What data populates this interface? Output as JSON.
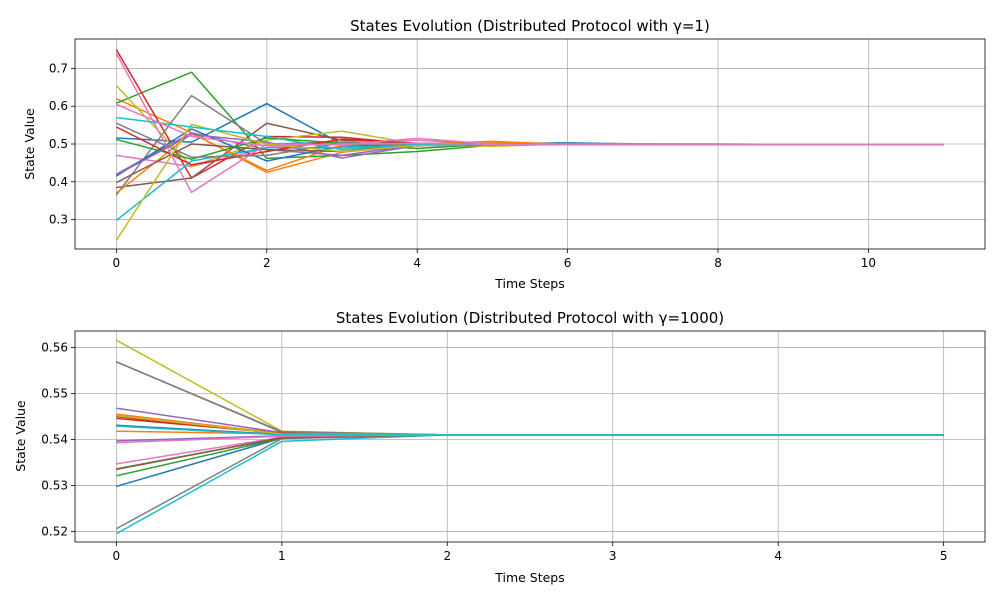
{
  "chart_data": [
    {
      "type": "line",
      "title": "States Evolution (Distributed Protocol with γ=1)",
      "xlabel": "Time Steps",
      "ylabel": "State Value",
      "xlim": [
        -0.55,
        11.55
      ],
      "ylim": [
        0.222,
        0.778
      ],
      "xticks": [
        0,
        2,
        4,
        6,
        8,
        10
      ],
      "yticks": [
        0.3,
        0.4,
        0.5,
        0.6,
        0.7
      ],
      "ytick_labels": [
        "0.3",
        "0.4",
        "0.5",
        "0.6",
        "0.7"
      ],
      "grid": true,
      "x": [
        0,
        1,
        2,
        3,
        4,
        5,
        6,
        7,
        8,
        9,
        10,
        11
      ],
      "series": [
        {
          "color": "#1f77b4",
          "values": [
            0.516,
            0.505,
            0.607,
            0.5,
            0.498,
            0.501,
            0.503,
            0.5,
            0.5,
            0.499,
            0.499,
            0.499
          ]
        },
        {
          "color": "#ff7f0e",
          "values": [
            0.62,
            0.53,
            0.425,
            0.478,
            0.497,
            0.503,
            0.5,
            0.499,
            0.499,
            0.499,
            0.499,
            0.499
          ]
        },
        {
          "color": "#2ca02c",
          "values": [
            0.608,
            0.69,
            0.462,
            0.47,
            0.48,
            0.497,
            0.501,
            0.5,
            0.499,
            0.499,
            0.499,
            0.499
          ]
        },
        {
          "color": "#d62728",
          "values": [
            0.75,
            0.41,
            0.52,
            0.518,
            0.5,
            0.5,
            0.499,
            0.499,
            0.499,
            0.499,
            0.499,
            0.499
          ]
        },
        {
          "color": "#9467bd",
          "values": [
            0.42,
            0.53,
            0.485,
            0.47,
            0.498,
            0.5,
            0.499,
            0.499,
            0.499,
            0.499,
            0.499,
            0.499
          ]
        },
        {
          "color": "#8c564b",
          "values": [
            0.385,
            0.41,
            0.555,
            0.51,
            0.5,
            0.498,
            0.499,
            0.499,
            0.499,
            0.499,
            0.499,
            0.499
          ]
        },
        {
          "color": "#e377c2",
          "values": [
            0.47,
            0.44,
            0.49,
            0.505,
            0.51,
            0.5,
            0.499,
            0.499,
            0.499,
            0.499,
            0.499,
            0.499
          ]
        },
        {
          "color": "#7f7f7f",
          "values": [
            0.365,
            0.628,
            0.5,
            0.505,
            0.495,
            0.499,
            0.499,
            0.499,
            0.499,
            0.499,
            0.499,
            0.499
          ]
        },
        {
          "color": "#bcbd22",
          "values": [
            0.655,
            0.44,
            0.51,
            0.534,
            0.5,
            0.494,
            0.5,
            0.5,
            0.499,
            0.499,
            0.499,
            0.499
          ]
        },
        {
          "color": "#17becf",
          "values": [
            0.298,
            0.455,
            0.49,
            0.49,
            0.5,
            0.5,
            0.499,
            0.499,
            0.499,
            0.499,
            0.499,
            0.499
          ]
        },
        {
          "color": "#1f77b4",
          "values": [
            0.415,
            0.54,
            0.455,
            0.495,
            0.498,
            0.5,
            0.499,
            0.499,
            0.499,
            0.499,
            0.499,
            0.499
          ]
        },
        {
          "color": "#ff7f0e",
          "values": [
            0.37,
            0.528,
            0.43,
            0.497,
            0.5,
            0.507,
            0.499,
            0.499,
            0.499,
            0.499,
            0.499,
            0.499
          ]
        },
        {
          "color": "#2ca02c",
          "values": [
            0.512,
            0.46,
            0.516,
            0.502,
            0.488,
            0.5,
            0.499,
            0.499,
            0.499,
            0.499,
            0.499,
            0.499
          ]
        },
        {
          "color": "#d62728",
          "values": [
            0.545,
            0.445,
            0.48,
            0.513,
            0.502,
            0.499,
            0.499,
            0.499,
            0.499,
            0.499,
            0.499,
            0.499
          ]
        },
        {
          "color": "#9467bd",
          "values": [
            0.418,
            0.525,
            0.505,
            0.463,
            0.496,
            0.5,
            0.499,
            0.499,
            0.499,
            0.499,
            0.499,
            0.499
          ]
        },
        {
          "color": "#8c564b",
          "values": [
            0.398,
            0.5,
            0.485,
            0.48,
            0.502,
            0.5,
            0.499,
            0.499,
            0.499,
            0.499,
            0.499,
            0.499
          ]
        },
        {
          "color": "#e377c2",
          "values": [
            0.74,
            0.372,
            0.5,
            0.498,
            0.515,
            0.5,
            0.499,
            0.499,
            0.499,
            0.499,
            0.499,
            0.499
          ]
        },
        {
          "color": "#7f7f7f",
          "values": [
            0.555,
            0.465,
            0.47,
            0.503,
            0.495,
            0.499,
            0.499,
            0.499,
            0.499,
            0.499,
            0.499,
            0.499
          ]
        },
        {
          "color": "#bcbd22",
          "values": [
            0.245,
            0.552,
            0.5,
            0.48,
            0.496,
            0.5,
            0.499,
            0.499,
            0.499,
            0.499,
            0.499,
            0.499
          ]
        },
        {
          "color": "#17becf",
          "values": [
            0.57,
            0.545,
            0.52,
            0.485,
            0.5,
            0.499,
            0.499,
            0.499,
            0.499,
            0.499,
            0.499,
            0.499
          ]
        },
        {
          "color": "#e377c2",
          "values": [
            0.605,
            0.52,
            0.495,
            0.5,
            0.502,
            0.499,
            0.499,
            0.499,
            0.499,
            0.499,
            0.499,
            0.499
          ]
        }
      ]
    },
    {
      "type": "line",
      "title": "States Evolution (Distributed Protocol with γ=1000)",
      "xlabel": "Time Steps",
      "ylabel": "State Value",
      "xlim": [
        -0.25,
        5.25
      ],
      "ylim": [
        0.5177,
        0.5636
      ],
      "xticks": [
        0,
        1,
        2,
        3,
        4,
        5
      ],
      "yticks": [
        0.52,
        0.53,
        0.54,
        0.55,
        0.56
      ],
      "ytick_labels": [
        "0.52",
        "0.53",
        "0.54",
        "0.55",
        "0.56"
      ],
      "grid": true,
      "x": [
        0,
        1,
        2,
        3,
        4,
        5
      ],
      "series": [
        {
          "color": "#1f77b4",
          "values": [
            0.5298,
            0.5403,
            0.541,
            0.541,
            0.541,
            0.541
          ]
        },
        {
          "color": "#ff7f0e",
          "values": [
            0.5418,
            0.5412,
            0.541,
            0.541,
            0.541,
            0.541
          ]
        },
        {
          "color": "#2ca02c",
          "values": [
            0.5321,
            0.5403,
            0.541,
            0.541,
            0.541,
            0.541
          ]
        },
        {
          "color": "#d62728",
          "values": [
            0.545,
            0.5414,
            0.541,
            0.541,
            0.541,
            0.541
          ]
        },
        {
          "color": "#9467bd",
          "values": [
            0.5468,
            0.5415,
            0.541,
            0.541,
            0.541,
            0.541
          ]
        },
        {
          "color": "#8c564b",
          "values": [
            0.5569,
            0.5416,
            0.541,
            0.541,
            0.541,
            0.541
          ]
        },
        {
          "color": "#e377c2",
          "values": [
            0.5347,
            0.5405,
            0.541,
            0.541,
            0.541,
            0.541
          ]
        },
        {
          "color": "#7f7f7f",
          "values": [
            0.5206,
            0.5402,
            0.541,
            0.541,
            0.541,
            0.541
          ]
        },
        {
          "color": "#bcbd22",
          "values": [
            0.5616,
            0.5418,
            0.541,
            0.541,
            0.541,
            0.541
          ]
        },
        {
          "color": "#17becf",
          "values": [
            0.5195,
            0.5396,
            0.541,
            0.541,
            0.541,
            0.541
          ]
        },
        {
          "color": "#1f77b4",
          "values": [
            0.5431,
            0.5411,
            0.541,
            0.541,
            0.541,
            0.541
          ]
        },
        {
          "color": "#ff7f0e",
          "values": [
            0.5455,
            0.5413,
            0.541,
            0.541,
            0.541,
            0.541
          ]
        },
        {
          "color": "#2ca02c",
          "values": [
            0.5336,
            0.5404,
            0.541,
            0.541,
            0.541,
            0.541
          ]
        },
        {
          "color": "#d62728",
          "values": [
            0.5446,
            0.5413,
            0.541,
            0.541,
            0.541,
            0.541
          ]
        },
        {
          "color": "#9467bd",
          "values": [
            0.5397,
            0.5408,
            0.541,
            0.541,
            0.541,
            0.541
          ]
        },
        {
          "color": "#8c564b",
          "values": [
            0.5335,
            0.5404,
            0.541,
            0.541,
            0.541,
            0.541
          ]
        },
        {
          "color": "#e377c2",
          "values": [
            0.5393,
            0.5407,
            0.541,
            0.541,
            0.541,
            0.541
          ]
        },
        {
          "color": "#7f7f7f",
          "values": [
            0.5569,
            0.5417,
            0.541,
            0.541,
            0.541,
            0.541
          ]
        },
        {
          "color": "#bcbd22",
          "values": [
            0.5452,
            0.5412,
            0.541,
            0.541,
            0.541,
            0.541
          ]
        },
        {
          "color": "#17becf",
          "values": [
            0.5429,
            0.541,
            0.541,
            0.541,
            0.541,
            0.541
          ]
        }
      ]
    }
  ]
}
